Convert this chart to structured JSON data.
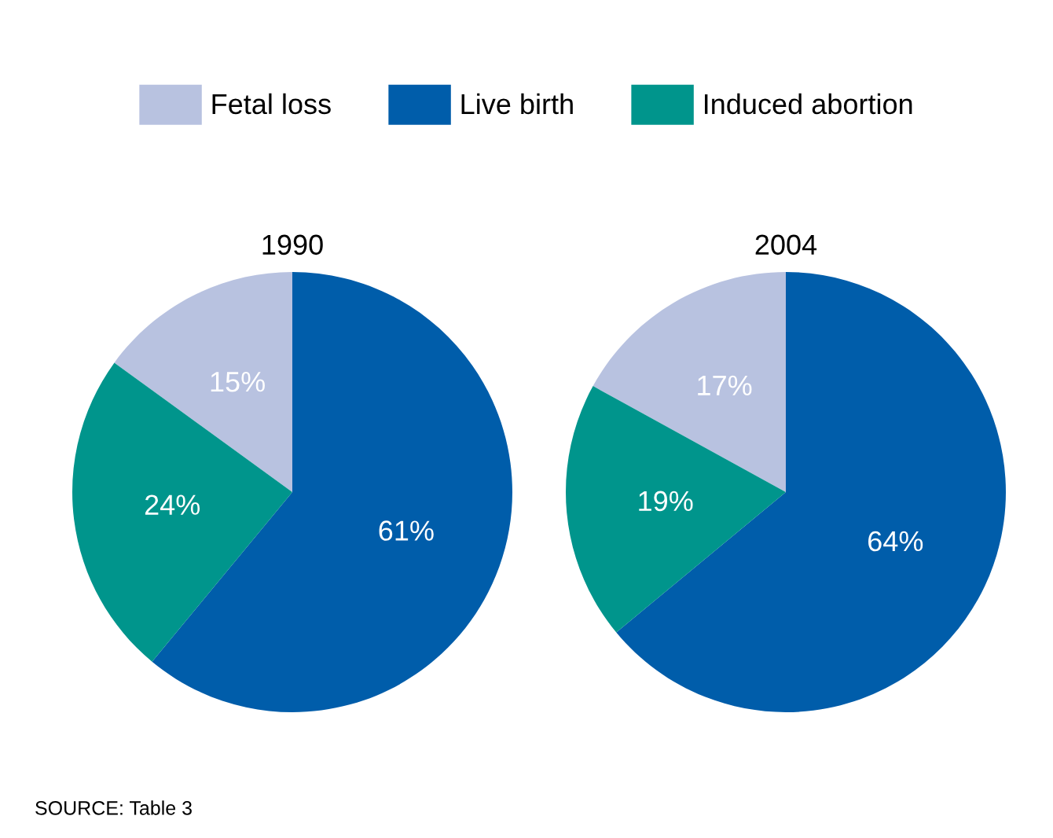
{
  "chart_data": [
    {
      "type": "pie",
      "title": "1990",
      "categories": [
        "Fetal loss",
        "Live birth",
        "Induced abortion"
      ],
      "values": [
        15,
        61,
        24
      ],
      "colors": [
        "#b8c2e0",
        "#005daa",
        "#00958c"
      ],
      "value_labels": [
        "15%",
        "61%",
        "24%"
      ],
      "legend": "top"
    },
    {
      "type": "pie",
      "title": "2004",
      "categories": [
        null,
        null,
        null
      ],
      "values": [
        17,
        64,
        19
      ],
      "colors": [
        "#b8c2e0",
        "#005daa",
        "#00958c"
      ],
      "value_labels": [
        "17%",
        "64%",
        "19%"
      ],
      "annotations": [
        "SOURCE: Table 3"
      ]
    }
  ]
}
